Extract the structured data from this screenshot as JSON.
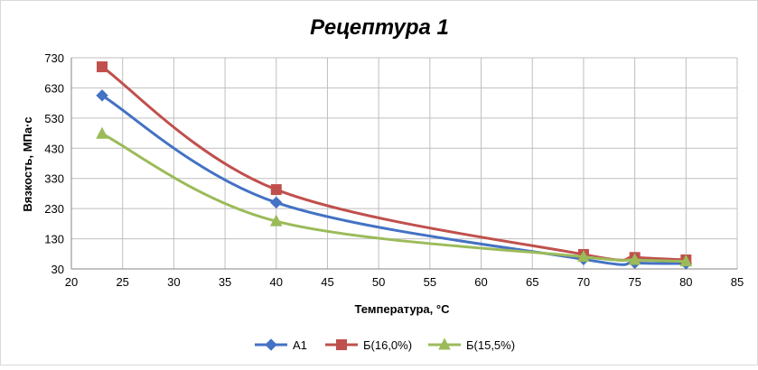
{
  "chart_data": {
    "type": "line",
    "title": "Рецептура 1",
    "xlabel": "Температура, °С",
    "ylabel": "Вязкость, МПа·с",
    "xlim": [
      20,
      85
    ],
    "ylim": [
      30,
      730
    ],
    "xticks": [
      20,
      25,
      30,
      35,
      40,
      45,
      50,
      55,
      60,
      65,
      70,
      75,
      80,
      85
    ],
    "yticks": [
      30,
      130,
      230,
      330,
      430,
      530,
      630,
      730
    ],
    "grid": true,
    "legend_position": "bottom",
    "series": [
      {
        "name": "А1",
        "color": "#4472C4",
        "marker": "diamond",
        "x": [
          23,
          40,
          70,
          75,
          80
        ],
        "y": [
          605,
          250,
          62,
          50,
          48
        ]
      },
      {
        "name": "Б(16,0%)",
        "color": "#C0504D",
        "marker": "square",
        "x": [
          23,
          40,
          70,
          75,
          80
        ],
        "y": [
          700,
          293,
          78,
          68,
          60
        ]
      },
      {
        "name": "Б(15,5%)",
        "color": "#9BBB59",
        "marker": "triangle",
        "x": [
          23,
          40,
          70,
          75,
          80
        ],
        "y": [
          478,
          188,
          70,
          60,
          55
        ]
      }
    ]
  }
}
